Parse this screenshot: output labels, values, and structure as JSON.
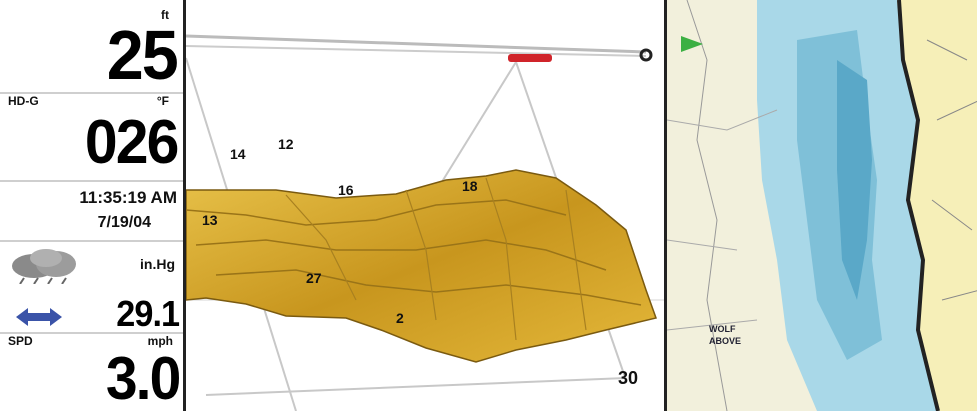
{
  "left_panel": {
    "depth": {
      "unit": "ft",
      "value": "25"
    },
    "temperature": {
      "label": "HD-G",
      "unit": "°F",
      "value": "026"
    },
    "time": "11:35:19 AM",
    "date": "7/19/04",
    "barometer": {
      "unit": "in.Hg",
      "value": "29.1"
    },
    "speed": {
      "label": "SPD",
      "unit": "mph",
      "value": "3.0"
    }
  },
  "view3d": {
    "heading_marker_label": "0",
    "range_label": "30",
    "depth_labels": [
      "14",
      "12",
      "16",
      "18",
      "13",
      "27",
      "2"
    ],
    "terrain_color": "#d9a92a",
    "marker_color": "#d0242a"
  },
  "chart": {
    "water_color": "#a9d8e8",
    "land_color": "#f3f0dc",
    "place_labels": [
      "WOLF",
      "ABOVE"
    ],
    "cursor_icon": "green-arrow-icon"
  }
}
